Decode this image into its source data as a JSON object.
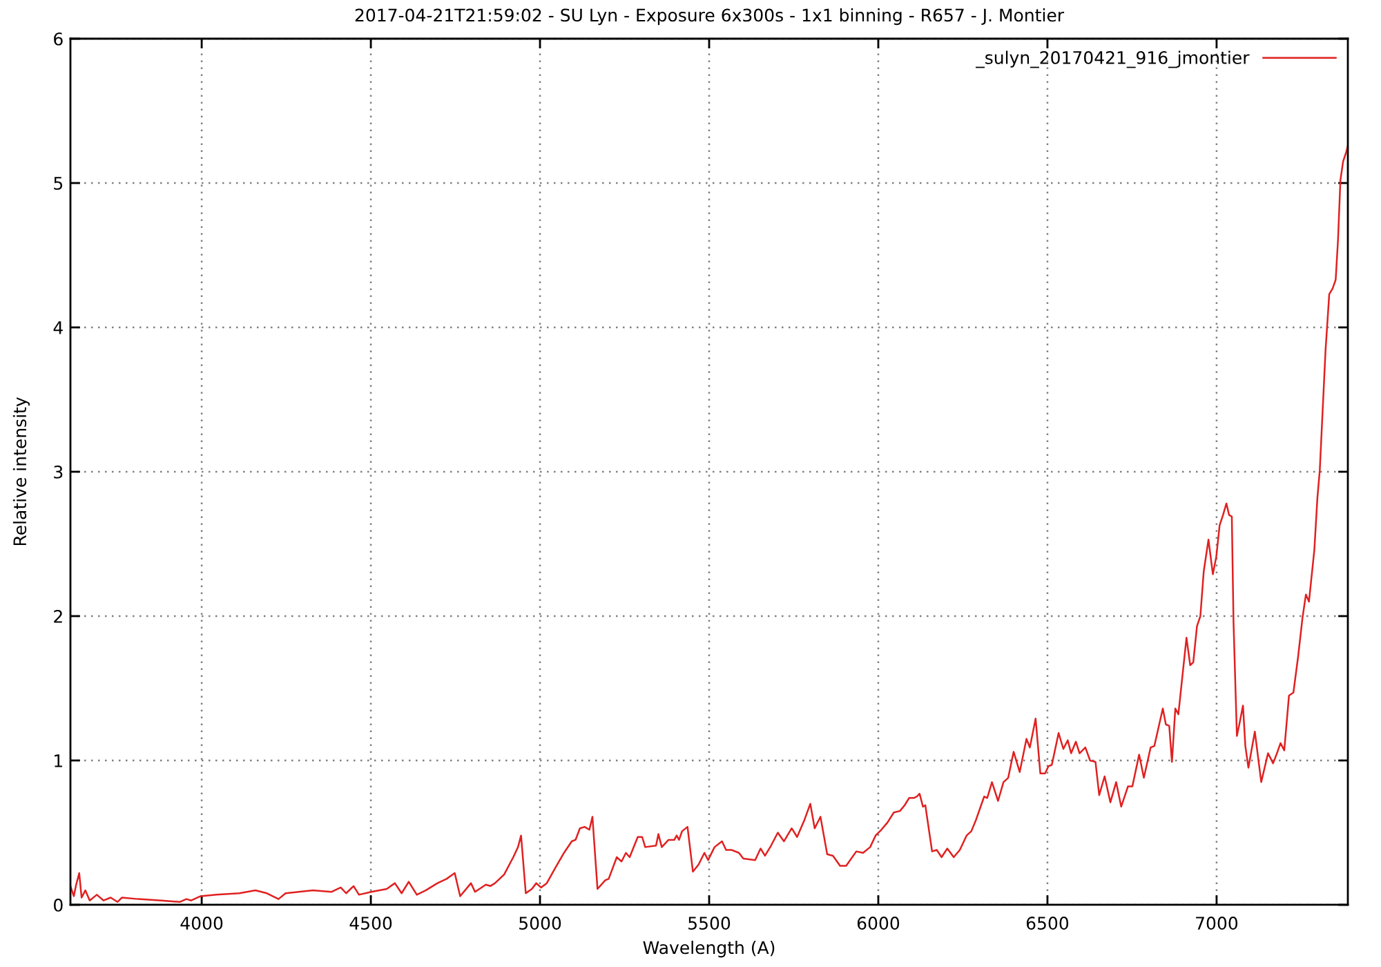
{
  "chart_data": {
    "type": "line",
    "title": "2017-04-21T21:59:02 - SU Lyn - Exposure 6x300s - 1x1 binning - R657 - J. Montier",
    "xlabel": "Wavelength (A)",
    "ylabel": "Relative intensity",
    "x": [
      3612,
      3622,
      3629,
      3638,
      3645,
      3656,
      3669,
      3690,
      3710,
      3731,
      3751,
      3764,
      3812,
      3880,
      3935,
      3955,
      3969,
      3997,
      4044,
      4111,
      4159,
      4193,
      4227,
      4248,
      4329,
      4384,
      4411,
      4427,
      4449,
      4465,
      4501,
      4547,
      4571,
      4591,
      4612,
      4636,
      4662,
      4697,
      4724,
      4748,
      4764,
      4796,
      4808,
      4840,
      4853,
      4867,
      4894,
      4921,
      4935,
      4944,
      4958,
      4976,
      4989,
      5003,
      5020,
      5044,
      5071,
      5094,
      5105,
      5118,
      5132,
      5146,
      5155,
      5170,
      5193,
      5203,
      5227,
      5241,
      5254,
      5265,
      5289,
      5302,
      5311,
      5343,
      5350,
      5360,
      5380,
      5397,
      5404,
      5411,
      5420,
      5436,
      5452,
      5469,
      5486,
      5497,
      5516,
      5538,
      5550,
      5567,
      5588,
      5601,
      5636,
      5652,
      5665,
      5683,
      5703,
      5721,
      5744,
      5760,
      5782,
      5799,
      5812,
      5829,
      5849,
      5866,
      5887,
      5905,
      5935,
      5955,
      5976,
      5992,
      6009,
      6027,
      6046,
      6064,
      6078,
      6091,
      6105,
      6114,
      6122,
      6132,
      6139,
      6159,
      6173,
      6187,
      6204,
      6223,
      6241,
      6261,
      6275,
      6289,
      6313,
      6322,
      6336,
      6354,
      6370,
      6384,
      6400,
      6418,
      6438,
      6448,
      6465,
      6479,
      6493,
      6503,
      6513,
      6533,
      6547,
      6560,
      6570,
      6584,
      6595,
      6612,
      6626,
      6642,
      6653,
      6669,
      6686,
      6703,
      6718,
      6738,
      6751,
      6771,
      6785,
      6805,
      6816,
      6841,
      6850,
      6860,
      6868,
      6878,
      6887,
      6911,
      6922,
      6931,
      6942,
      6952,
      6962,
      6976,
      6989,
      6999,
      7009,
      7019,
      7029,
      7037,
      7045,
      7050,
      7060,
      7068,
      7078,
      7085,
      7094,
      7113,
      7132,
      7152,
      7167,
      7180,
      7189,
      7200,
      7214,
      7227,
      7241,
      7254,
      7264,
      7273,
      7289,
      7298,
      7305,
      7322,
      7333,
      7343,
      7352,
      7359,
      7366,
      7374,
      7384,
      7388
    ],
    "series": [
      {
        "name": "_sulyn_20170421_916_jmontier",
        "color": "#e02020",
        "values": [
          0.13,
          0.06,
          0.14,
          0.22,
          0.05,
          0.1,
          0.03,
          0.07,
          0.03,
          0.05,
          0.02,
          0.05,
          0.04,
          0.03,
          0.02,
          0.04,
          0.03,
          0.06,
          0.07,
          0.08,
          0.1,
          0.08,
          0.04,
          0.08,
          0.1,
          0.09,
          0.12,
          0.08,
          0.13,
          0.07,
          0.09,
          0.11,
          0.15,
          0.08,
          0.16,
          0.07,
          0.1,
          0.15,
          0.18,
          0.22,
          0.06,
          0.15,
          0.09,
          0.14,
          0.13,
          0.15,
          0.21,
          0.33,
          0.4,
          0.48,
          0.08,
          0.11,
          0.15,
          0.12,
          0.15,
          0.25,
          0.36,
          0.44,
          0.45,
          0.53,
          0.54,
          0.52,
          0.61,
          0.11,
          0.17,
          0.18,
          0.33,
          0.3,
          0.36,
          0.33,
          0.47,
          0.47,
          0.4,
          0.41,
          0.49,
          0.4,
          0.45,
          0.45,
          0.48,
          0.45,
          0.51,
          0.54,
          0.23,
          0.28,
          0.36,
          0.31,
          0.4,
          0.44,
          0.38,
          0.38,
          0.36,
          0.32,
          0.31,
          0.39,
          0.34,
          0.41,
          0.5,
          0.44,
          0.53,
          0.47,
          0.59,
          0.7,
          0.53,
          0.61,
          0.35,
          0.34,
          0.27,
          0.27,
          0.37,
          0.36,
          0.4,
          0.48,
          0.52,
          0.57,
          0.64,
          0.65,
          0.69,
          0.74,
          0.74,
          0.75,
          0.77,
          0.68,
          0.69,
          0.37,
          0.38,
          0.33,
          0.39,
          0.33,
          0.38,
          0.48,
          0.51,
          0.59,
          0.75,
          0.74,
          0.85,
          0.72,
          0.85,
          0.88,
          1.06,
          0.92,
          1.15,
          1.09,
          1.29,
          0.91,
          0.91,
          0.96,
          0.97,
          1.19,
          1.08,
          1.14,
          1.05,
          1.13,
          1.05,
          1.09,
          1.0,
          0.99,
          0.76,
          0.89,
          0.71,
          0.85,
          0.68,
          0.82,
          0.82,
          1.04,
          0.88,
          1.09,
          1.1,
          1.36,
          1.25,
          1.24,
          0.99,
          1.36,
          1.32,
          1.85,
          1.66,
          1.68,
          1.93,
          2.0,
          2.31,
          2.53,
          2.29,
          2.41,
          2.63,
          2.7,
          2.78,
          2.7,
          2.69,
          1.96,
          1.17,
          1.26,
          1.38,
          1.1,
          0.95,
          1.2,
          0.85,
          1.05,
          0.98,
          1.06,
          1.12,
          1.07,
          1.45,
          1.47,
          1.72,
          1.99,
          2.15,
          2.1,
          2.46,
          2.82,
          3.01,
          3.84,
          4.23,
          4.27,
          4.33,
          4.61,
          5.02,
          5.15,
          5.22,
          5.26
        ]
      }
    ],
    "xlim": [
      3612,
      7388
    ],
    "ylim": [
      0,
      6
    ],
    "xticks": [
      4000,
      4500,
      5000,
      5500,
      6000,
      6500,
      7000
    ],
    "yticks": [
      0,
      1,
      2,
      3,
      4,
      5,
      6
    ],
    "grid": true,
    "legend": "top right",
    "line_style": "solid"
  }
}
